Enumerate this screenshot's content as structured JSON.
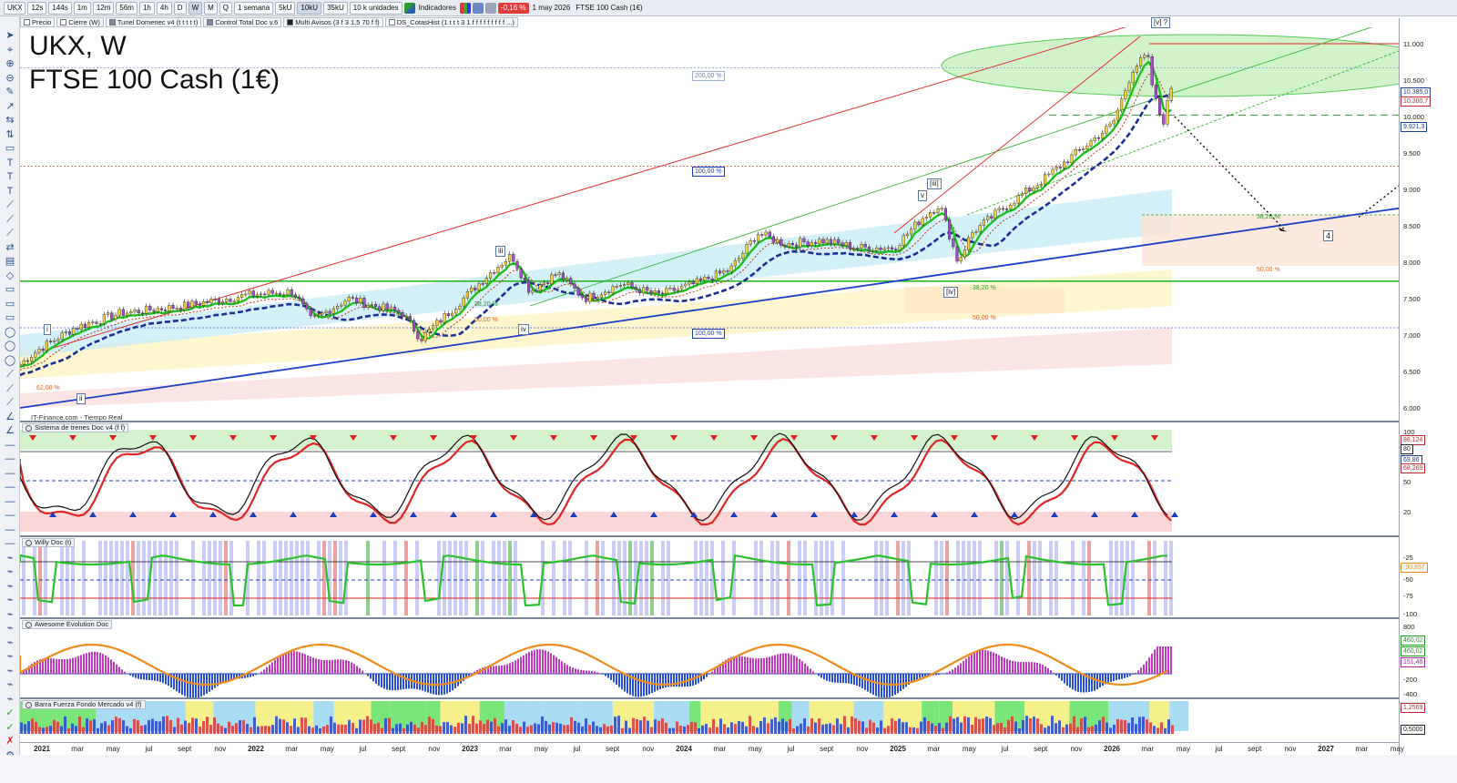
{
  "toolbar": {
    "symbol": "UKX",
    "intervals": [
      "12s",
      "144s",
      "1m",
      "12m",
      "56m",
      "1h",
      "4h",
      "D",
      "W",
      "M",
      "Q"
    ],
    "selected_interval": "W",
    "period": "1 semana",
    "units": [
      "5kU",
      "10kU",
      "35kU"
    ],
    "selected_units": "10kU",
    "units_dropdown": "10 k unidades",
    "indicators_label": "Indicadores",
    "change_badge": "-0,16 %",
    "date": "1 may 2026",
    "instrument": "FTSE 100 Cash (1€)"
  },
  "indicator_bar": {
    "chips": [
      "Precio",
      "Cierre (W)",
      "Tunel Domenec v4 (t t t t t)",
      "Control Total Doc v.6",
      "Multi Avisos (3 f 3 1,5 70 f f)",
      "DS_CotasHist (1 t t t 3 1 f f f f f f f f f ...)"
    ]
  },
  "chart": {
    "title_line1": "UKX, W",
    "title_line2": "FTSE 100 Cash (1€)",
    "source": "IT-Finance.com - Tiempo Real",
    "price_ticks": [
      "11.000",
      "10.500",
      "10.000",
      "9.500",
      "9.000",
      "8.500",
      "8.000",
      "7.500",
      "7.000",
      "6.500",
      "6.000"
    ],
    "price_tags": [
      {
        "label": "10.385,0",
        "color": "#1b3f9a"
      },
      {
        "label": "10.300,7",
        "color": "#c0272d"
      },
      {
        "label": "9.921,3",
        "color": "#1b3f9a"
      }
    ],
    "percent_tags": [
      {
        "label": "200,00 %",
        "color": "#6a7fb0"
      },
      {
        "label": "100,00 %",
        "color": "#1b3fb8"
      },
      {
        "label": "100,00 %",
        "color": "#1b3fb8"
      }
    ],
    "fib_labels": [
      "38,20 %",
      "50,00 %",
      "38,20 %",
      "50,00 %",
      "38,20 %",
      "50,00 %",
      "62,00 %"
    ],
    "wave_labels": [
      "i",
      "ii",
      "iii",
      "iv",
      "v",
      "[iii]",
      "[iv]",
      "[v] ?",
      "4"
    ]
  },
  "panes": {
    "trenes": {
      "title": "Sistema de trenes Doc v4 (f f)",
      "ticks": [
        "100",
        "80",
        "50",
        "20"
      ],
      "tags": [
        "86,124",
        "80",
        "69,86",
        "68,269"
      ]
    },
    "willy": {
      "title": "Willy Doc (t)",
      "ticks": [
        "-25",
        "-50",
        "-75",
        "-100"
      ],
      "tags": [
        "-30,857"
      ]
    },
    "awesome": {
      "title": "Awesome Evolution Doc",
      "ticks": [
        "800",
        "-200",
        "-400"
      ],
      "tags": [
        "460,02",
        "460,02",
        "151,46"
      ]
    },
    "barra": {
      "title": "Barra Fuerza Fondo Mercado v4 (f)",
      "tags": [
        "1,2569",
        "0,5000"
      ]
    }
  },
  "time_axis": [
    {
      "label": "2021",
      "year": true
    },
    {
      "label": "mar"
    },
    {
      "label": "may"
    },
    {
      "label": "jul"
    },
    {
      "label": "sept"
    },
    {
      "label": "nov"
    },
    {
      "label": "2022",
      "year": true
    },
    {
      "label": "mar"
    },
    {
      "label": "may"
    },
    {
      "label": "jul"
    },
    {
      "label": "sept"
    },
    {
      "label": "nov"
    },
    {
      "label": "2023",
      "year": true
    },
    {
      "label": "mar"
    },
    {
      "label": "may"
    },
    {
      "label": "jul"
    },
    {
      "label": "sept"
    },
    {
      "label": "nov"
    },
    {
      "label": "2024",
      "year": true
    },
    {
      "label": "mar"
    },
    {
      "label": "may"
    },
    {
      "label": "jul"
    },
    {
      "label": "sept"
    },
    {
      "label": "nov"
    },
    {
      "label": "2025",
      "year": true
    },
    {
      "label": "mar"
    },
    {
      "label": "may"
    },
    {
      "label": "jul"
    },
    {
      "label": "sept"
    },
    {
      "label": "nov"
    },
    {
      "label": "2026",
      "year": true
    },
    {
      "label": "mar"
    },
    {
      "label": "may"
    },
    {
      "label": "jul"
    },
    {
      "label": "sept"
    },
    {
      "label": "nov"
    },
    {
      "label": "2027",
      "year": true
    },
    {
      "label": "mar"
    },
    {
      "label": "may"
    }
  ],
  "colors": {
    "price_up": "#2f8f2f",
    "price_down": "#c0272d",
    "fast_ma": "#19c119",
    "slow_ma": "#1b2f96",
    "trend_line": "#1b3fc8",
    "resistance": "#e03030",
    "support_green": "#20b020"
  }
}
